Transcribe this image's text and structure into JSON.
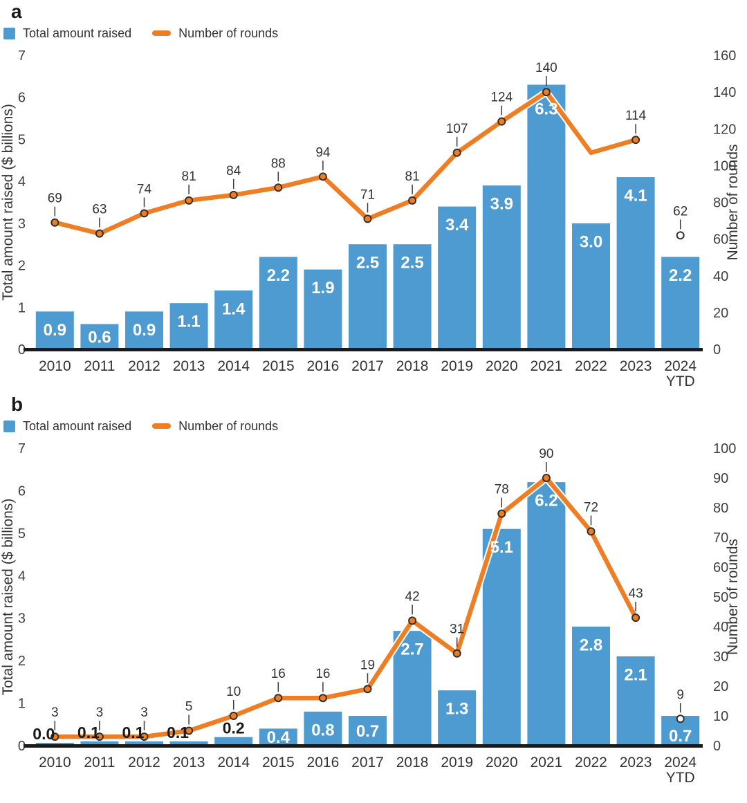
{
  "figure": {
    "legend": {
      "bar_label": "Total amount raised",
      "line_label": "Number of rounds"
    },
    "colors": {
      "bar": "#4d9bd1",
      "line": "#ef7d24",
      "line_halo": "#ffffff",
      "marker_ring": "#33302b",
      "marker_fill_isolated": "#ffffff",
      "axis_line": "#1a1a1a",
      "tick_text": "#3f3f3f",
      "label_text": "#333333",
      "bar_label_light": "#ffffff",
      "bar_label_dark": "#1a1a1a"
    }
  },
  "chart_data": [
    {
      "panel_label": "a",
      "type": "bar+line",
      "categories": [
        "2010",
        "2011",
        "2012",
        "2013",
        "2014",
        "2015",
        "2016",
        "2017",
        "2018",
        "2019",
        "2020",
        "2021",
        "2022",
        "2023",
        "2024 YTD"
      ],
      "series": [
        {
          "name": "Total amount raised",
          "type": "bar",
          "axis": "left",
          "values": [
            0.9,
            0.6,
            0.9,
            1.1,
            1.4,
            2.2,
            1.9,
            2.5,
            2.5,
            3.4,
            3.9,
            6.3,
            3.0,
            4.1,
            2.2
          ],
          "labels": [
            "0.9",
            "0.6",
            "0.9",
            "1.1",
            "1.4",
            "2.2",
            "1.9",
            "2.5",
            "2.5",
            "3.4",
            "3.9",
            "6.3",
            "3.0",
            "4.1",
            "2.2"
          ]
        },
        {
          "name": "Number of rounds",
          "type": "line",
          "axis": "right",
          "values": [
            69,
            63,
            74,
            81,
            84,
            88,
            94,
            71,
            81,
            107,
            124,
            140,
            107,
            114,
            62
          ],
          "labels": [
            "69",
            "63",
            "74",
            "81",
            "84",
            "88",
            "94",
            "71",
            "81",
            "107",
            "124",
            "140",
            null,
            "114",
            "62"
          ],
          "markers": [
            true,
            true,
            true,
            true,
            true,
            true,
            true,
            true,
            true,
            true,
            true,
            true,
            false,
            true,
            true
          ],
          "connected_upto": 13
        }
      ],
      "ylabel_left": "Total amount raised ($ billions)",
      "ylabel_right": "Number of rounds",
      "ylim_left": [
        0,
        7
      ],
      "ylim_right": [
        0,
        160
      ],
      "yticks_left": [
        0,
        1,
        2,
        3,
        4,
        5,
        6,
        7
      ],
      "yticks_right": [
        0,
        20,
        40,
        60,
        80,
        100,
        120,
        140,
        160
      ],
      "grid": false,
      "legend_position": "top-left"
    },
    {
      "panel_label": "b",
      "type": "bar+line",
      "categories": [
        "2010",
        "2011",
        "2012",
        "2013",
        "2014",
        "2015",
        "2016",
        "2017",
        "2018",
        "2019",
        "2020",
        "2021",
        "2022",
        "2023",
        "2024 YTD"
      ],
      "series": [
        {
          "name": "Total amount raised",
          "type": "bar",
          "axis": "left",
          "values": [
            0.0,
            0.1,
            0.1,
            0.1,
            0.2,
            0.4,
            0.8,
            0.7,
            2.7,
            1.3,
            5.1,
            6.2,
            2.8,
            2.1,
            0.7
          ],
          "labels": [
            "0.0",
            "0.1",
            "0.1",
            "0.1",
            "0.2",
            "0.4",
            "0.8",
            "0.7",
            "2.7",
            "1.3",
            "5.1",
            "6.2",
            "2.8",
            "2.1",
            "0.7"
          ]
        },
        {
          "name": "Number of rounds",
          "type": "line",
          "axis": "right",
          "values": [
            3,
            3,
            3,
            5,
            10,
            16,
            16,
            19,
            42,
            31,
            78,
            90,
            72,
            43,
            9
          ],
          "labels": [
            "3",
            "3",
            "3",
            "5",
            "10",
            "16",
            "16",
            "19",
            "42",
            "31",
            "78",
            "90",
            "72",
            "43",
            "9"
          ],
          "markers": [
            true,
            true,
            true,
            true,
            true,
            true,
            true,
            true,
            true,
            true,
            true,
            true,
            true,
            true,
            true
          ],
          "connected_upto": 13
        }
      ],
      "ylabel_left": "Total amount raised ($ billions)",
      "ylabel_right": "Number of rounds",
      "ylim_left": [
        0,
        7
      ],
      "ylim_right": [
        0,
        100
      ],
      "yticks_left": [
        0,
        1,
        2,
        3,
        4,
        5,
        6,
        7
      ],
      "yticks_right": [
        0,
        10,
        20,
        30,
        40,
        50,
        60,
        70,
        80,
        90,
        100
      ],
      "grid": false,
      "legend_position": "top-left"
    }
  ]
}
